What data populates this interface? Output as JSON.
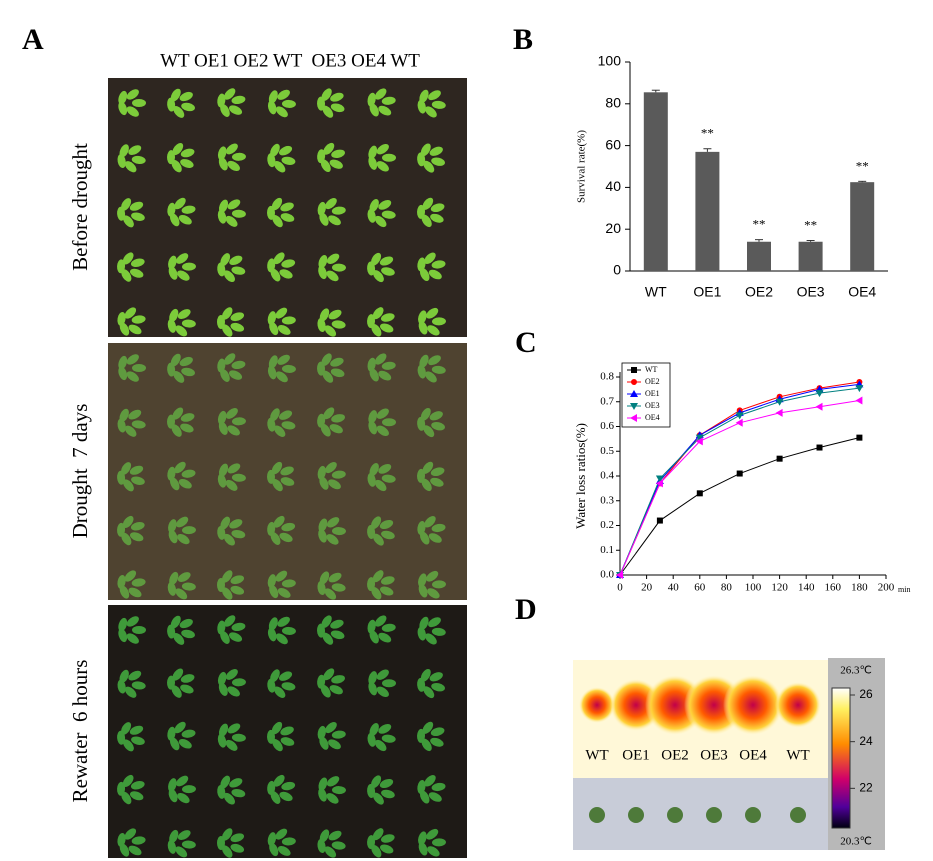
{
  "figure": {
    "panel_a": {
      "label": "A",
      "genotypes": "WT OE1 OE2 WT  OE3 OE4 WT",
      "rows": [
        "Before drought",
        "Drought  7 days",
        "Rewater  6 hours"
      ]
    },
    "panel_b": {
      "label": "B"
    },
    "panel_c": {
      "label": "C"
    },
    "panel_d": {
      "label": "D",
      "genotypes": [
        "WT",
        "OE1",
        "OE2",
        "OE3",
        "OE4",
        "WT"
      ],
      "colorbar": {
        "max_label": "26.3℃",
        "min_label": "20.3℃",
        "lim": [
          20.3,
          26.3
        ],
        "ticks": [
          26,
          24,
          22
        ]
      }
    }
  },
  "chart_data": [
    {
      "type": "bar",
      "ylabel": "Survival rate(%)",
      "categories": [
        "WT",
        "OE1",
        "OE2",
        "OE3",
        "OE4"
      ],
      "values": [
        85.5,
        57,
        14,
        14,
        42.5
      ],
      "errors": [
        1,
        1.5,
        1,
        0.6,
        0.4
      ],
      "significance": [
        null,
        "**",
        "**",
        "**",
        "**"
      ],
      "color": "#5a5a5a",
      "ylim": [
        0,
        100
      ],
      "yticks": [
        0,
        20,
        40,
        60,
        80,
        100
      ]
    },
    {
      "type": "line",
      "ylabel": "Water loss ratios(%)",
      "xunit": "min",
      "x": [
        0,
        30,
        60,
        90,
        120,
        150,
        180
      ],
      "series": [
        {
          "name": "WT",
          "color": "#000000",
          "marker": "square",
          "values": [
            0,
            0.22,
            0.33,
            0.41,
            0.47,
            0.515,
            0.555
          ]
        },
        {
          "name": "OE2",
          "color": "#ff0000",
          "marker": "circle",
          "values": [
            0,
            0.37,
            0.565,
            0.665,
            0.72,
            0.755,
            0.78
          ]
        },
        {
          "name": "OE1",
          "color": "#0000ff",
          "marker": "triangle",
          "values": [
            0,
            0.38,
            0.565,
            0.655,
            0.71,
            0.75,
            0.77
          ]
        },
        {
          "name": "OE3",
          "color": "#008080",
          "marker": "triangle-down",
          "values": [
            0,
            0.39,
            0.555,
            0.645,
            0.7,
            0.735,
            0.755
          ]
        },
        {
          "name": "OE4",
          "color": "#ff00ff",
          "marker": "triangle-left",
          "values": [
            0,
            0.37,
            0.54,
            0.615,
            0.655,
            0.68,
            0.705
          ]
        }
      ],
      "xlim": [
        0,
        200
      ],
      "xticks": [
        0,
        20,
        40,
        60,
        80,
        100,
        120,
        140,
        160,
        180,
        200
      ],
      "ylim": [
        0,
        0.8
      ],
      "yticks": [
        {
          "value": 0,
          "label": "0.0"
        },
        0.1,
        0.2,
        0.3,
        0.4,
        0.5,
        0.6,
        0.7,
        0.8
      ]
    }
  ]
}
